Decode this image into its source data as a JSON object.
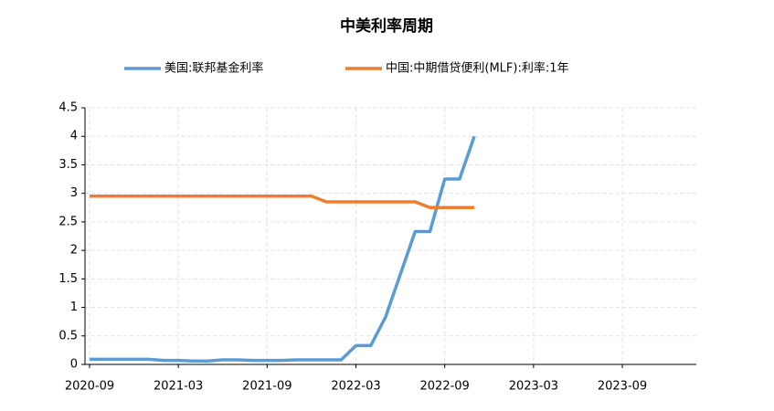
{
  "chart_data": {
    "type": "line",
    "title": "中美利率周期",
    "x": [
      "2020-09",
      "2020-10",
      "2020-11",
      "2020-12",
      "2021-01",
      "2021-02",
      "2021-03",
      "2021-04",
      "2021-05",
      "2021-06",
      "2021-07",
      "2021-08",
      "2021-09",
      "2021-10",
      "2021-11",
      "2021-12",
      "2022-01",
      "2022-02",
      "2022-03",
      "2022-04",
      "2022-05",
      "2022-06",
      "2022-07",
      "2022-08",
      "2022-09",
      "2022-10",
      "2022-11"
    ],
    "series": [
      {
        "name": "美国:联邦基金利率",
        "color": "#5b9bd5",
        "values": [
          0.09,
          0.09,
          0.09,
          0.09,
          0.09,
          0.07,
          0.07,
          0.06,
          0.06,
          0.08,
          0.08,
          0.07,
          0.07,
          0.07,
          0.08,
          0.08,
          0.08,
          0.08,
          0.33,
          0.33,
          0.83,
          1.58,
          2.33,
          2.33,
          3.25,
          3.25,
          4.0
        ]
      },
      {
        "name": "中国:中期借贷便利(MLF):利率:1年",
        "color": "#ed7d31",
        "values": [
          2.95,
          2.95,
          2.95,
          2.95,
          2.95,
          2.95,
          2.95,
          2.95,
          2.95,
          2.95,
          2.95,
          2.95,
          2.95,
          2.95,
          2.95,
          2.95,
          2.85,
          2.85,
          2.85,
          2.85,
          2.85,
          2.85,
          2.85,
          2.75,
          2.75,
          2.75,
          2.75
        ]
      }
    ],
    "xlim": [
      "2020-09",
      "2024-02"
    ],
    "xticks": [
      "2020-09",
      "2021-03",
      "2021-09",
      "2022-03",
      "2022-09",
      "2023-03",
      "2023-09"
    ],
    "ylim": [
      0,
      4.5
    ],
    "yticks": [
      0,
      0.5,
      1,
      1.5,
      2,
      2.5,
      3,
      3.5,
      4,
      4.5
    ],
    "grid": true,
    "legend": "top"
  }
}
